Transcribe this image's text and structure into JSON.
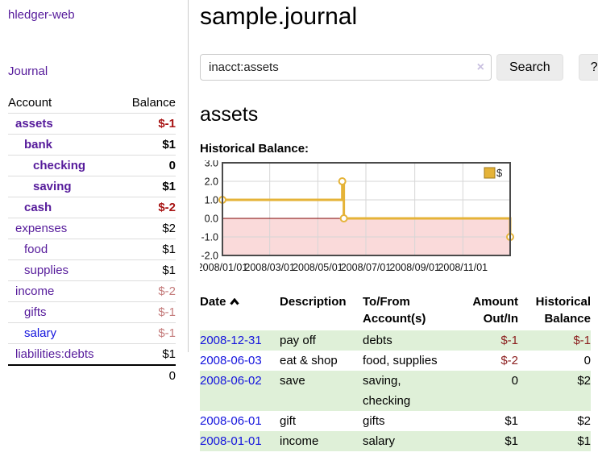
{
  "app": {
    "brand": "hledger-web",
    "nav_journal": "Journal"
  },
  "sidebar": {
    "headers": {
      "account": "Account",
      "balance": "Balance"
    },
    "accounts": [
      {
        "name": "assets",
        "indent": 1,
        "balance": "$-1",
        "bold": true,
        "neg": "strong",
        "link": "purple"
      },
      {
        "name": "bank",
        "indent": 2,
        "balance": "$1",
        "bold": true,
        "neg": "none",
        "link": "purple"
      },
      {
        "name": "checking",
        "indent": 3,
        "balance": "0",
        "bold": true,
        "neg": "none",
        "link": "purple"
      },
      {
        "name": "saving",
        "indent": 3,
        "balance": "$1",
        "bold": true,
        "neg": "none",
        "link": "purple"
      },
      {
        "name": "cash",
        "indent": 2,
        "balance": "$-2",
        "bold": true,
        "neg": "strong",
        "link": "purple"
      },
      {
        "name": "expenses",
        "indent": 1,
        "balance": "$2",
        "bold": false,
        "neg": "none",
        "link": "purple"
      },
      {
        "name": "food",
        "indent": 2,
        "balance": "$1",
        "bold": false,
        "neg": "none",
        "link": "purple"
      },
      {
        "name": "supplies",
        "indent": 2,
        "balance": "$1",
        "bold": false,
        "neg": "none",
        "link": "purple"
      },
      {
        "name": "income",
        "indent": 1,
        "balance": "$-2",
        "bold": false,
        "neg": "faded",
        "link": "purple"
      },
      {
        "name": "gifts",
        "indent": 2,
        "balance": "$-1",
        "bold": false,
        "neg": "faded",
        "link": "purple"
      },
      {
        "name": "salary",
        "indent": 2,
        "balance": "$-1",
        "bold": false,
        "neg": "faded",
        "link": "blue"
      },
      {
        "name": "liabilities:debts",
        "indent": 1,
        "balance": "$1",
        "bold": false,
        "neg": "none",
        "link": "purple"
      }
    ],
    "total": "0"
  },
  "header": {
    "title": "sample.journal"
  },
  "search": {
    "value": "inacct:assets",
    "clear_label": "×",
    "button_label": "Search",
    "help_label": "?"
  },
  "account_page": {
    "title": "assets",
    "chart_label": "Historical Balance:"
  },
  "chart_data": {
    "type": "line",
    "title": "Historical Balance",
    "step": true,
    "series": [
      {
        "name": "$",
        "points": [
          {
            "date": "2008/01/01",
            "day": 0,
            "value": 1
          },
          {
            "date": "2008/06/01",
            "day": 152,
            "value": 2
          },
          {
            "date": "2008/06/03",
            "day": 154,
            "value": 0
          },
          {
            "date": "2008/12/31",
            "day": 365,
            "value": -1
          }
        ]
      }
    ],
    "x_range_days": 365,
    "ylim": [
      -2,
      3
    ],
    "yticks": [
      {
        "value": 3,
        "label": "3.0"
      },
      {
        "value": 2,
        "label": "2.0"
      },
      {
        "value": 1,
        "label": "1.0"
      },
      {
        "value": 0,
        "label": "0.0"
      },
      {
        "value": -1,
        "label": "-1.0"
      },
      {
        "value": -2,
        "label": "-2.0"
      }
    ],
    "xticks": [
      {
        "day": 0,
        "label": "2008/01/01"
      },
      {
        "day": 60,
        "label": "2008/03/01"
      },
      {
        "day": 121,
        "label": "2008/05/01"
      },
      {
        "day": 182,
        "label": "2008/07/01"
      },
      {
        "day": 244,
        "label": "2008/09/01"
      },
      {
        "day": 305,
        "label": "2008/11/01"
      }
    ],
    "legend": {
      "label": "$",
      "position": "top-right"
    },
    "grid": true,
    "colors": {
      "line": "#e5b338",
      "marker_fill": "#ffffff",
      "negative_fill": "#fadada",
      "zero_line": "#7d0000",
      "grid": "#d6d6d6",
      "frame": "#4a4a4a",
      "legend_box_stroke": "#a07818"
    }
  },
  "register": {
    "columns": {
      "date": "Date",
      "description": "Description",
      "accounts": "To/From\nAccount(s)",
      "amount": "Amount\nOut/In",
      "balance": "Historical\nBalance"
    },
    "rows": [
      {
        "date": "2008-12-31",
        "description": "pay off",
        "accounts": "debts",
        "amount": "$-1",
        "amount_neg": true,
        "balance": "$-1",
        "balance_neg": true,
        "shade": true
      },
      {
        "date": "2008-06-03",
        "description": "eat & shop",
        "accounts": "food, supplies",
        "amount": "$-2",
        "amount_neg": true,
        "balance": "0",
        "balance_neg": false,
        "shade": false
      },
      {
        "date": "2008-06-02",
        "description": "save",
        "accounts": "saving,\nchecking",
        "amount": "0",
        "amount_neg": false,
        "balance": "$2",
        "balance_neg": false,
        "shade": true
      },
      {
        "date": "2008-06-01",
        "description": "gift",
        "accounts": "gifts",
        "amount": "$1",
        "amount_neg": false,
        "balance": "$2",
        "balance_neg": false,
        "shade": false
      },
      {
        "date": "2008-01-01",
        "description": "income",
        "accounts": "salary",
        "amount": "$1",
        "amount_neg": false,
        "balance": "$1",
        "balance_neg": false,
        "shade": true
      }
    ]
  }
}
